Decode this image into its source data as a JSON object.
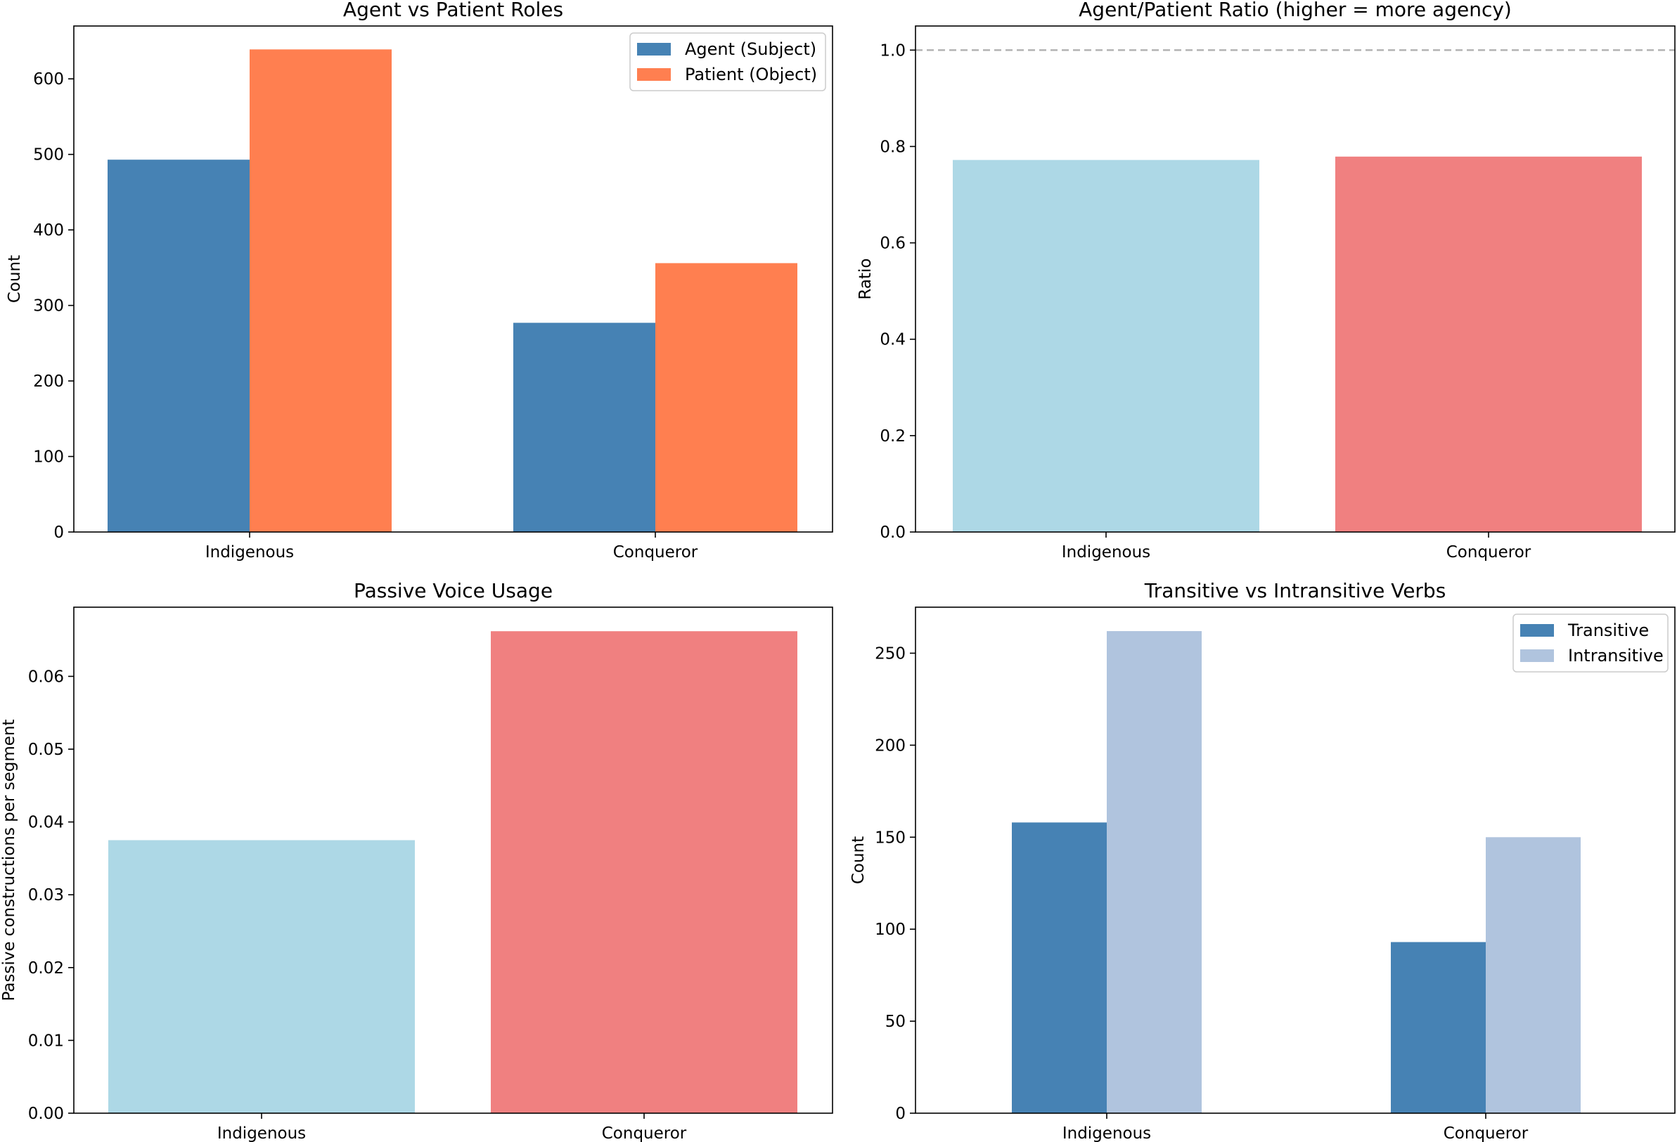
{
  "chart_data": [
    {
      "type": "bar",
      "title": "Agent vs Patient Roles",
      "ylabel": "Count",
      "categories": [
        "Indigenous",
        "Conqueror"
      ],
      "ylim": [
        0,
        670
      ],
      "yticks": [
        "0",
        "100",
        "200",
        "300",
        "400",
        "500",
        "600"
      ],
      "series": [
        {
          "name": "Agent (Subject)",
          "values": [
            493,
            277
          ],
          "color": "#4682b4"
        },
        {
          "name": "Patient (Object)",
          "values": [
            639,
            356
          ],
          "color": "#ff7f50"
        }
      ],
      "legend": "top-right"
    },
    {
      "type": "bar",
      "title": "Agent/Patient Ratio (higher = more agency)",
      "ylabel": "Ratio",
      "categories": [
        "Indigenous",
        "Conqueror"
      ],
      "ylim": [
        0,
        1.05
      ],
      "yticks": [
        "0.0",
        "0.2",
        "0.4",
        "0.6",
        "0.8",
        "1.0"
      ],
      "values": [
        0.772,
        0.779
      ],
      "colors": [
        "#add8e6",
        "#f08080"
      ],
      "reference_line": 1.0
    },
    {
      "type": "bar",
      "title": "Passive Voice Usage",
      "ylabel": "Passive constructions per segment",
      "categories": [
        "Indigenous",
        "Conqueror"
      ],
      "ylim": [
        0,
        0.0695
      ],
      "yticks": [
        "0.00",
        "0.01",
        "0.02",
        "0.03",
        "0.04",
        "0.05",
        "0.06"
      ],
      "values": [
        0.0375,
        0.0662
      ],
      "colors": [
        "#add8e6",
        "#f08080"
      ]
    },
    {
      "type": "bar",
      "title": "Transitive vs Intransitive Verbs",
      "ylabel": "Count",
      "categories": [
        "Indigenous",
        "Conqueror"
      ],
      "ylim": [
        0,
        275
      ],
      "yticks": [
        "0",
        "50",
        "100",
        "150",
        "200",
        "250"
      ],
      "series": [
        {
          "name": "Transitive",
          "values": [
            158,
            93
          ],
          "color": "#4682b4"
        },
        {
          "name": "Intransitive",
          "values": [
            262,
            150
          ],
          "color": "#b0c4de"
        }
      ],
      "legend": "top-right"
    }
  ]
}
